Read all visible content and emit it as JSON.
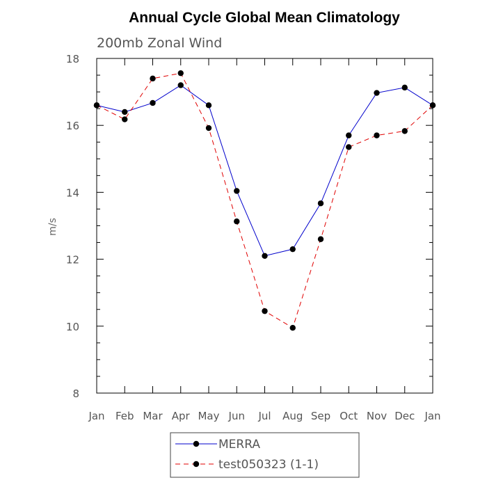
{
  "chart_data": {
    "type": "line",
    "title": "Annual Cycle Global Mean Climatology",
    "subtitle": "200mb Zonal Wind",
    "xlabel": "",
    "ylabel": "m/s",
    "categories": [
      "Jan",
      "Feb",
      "Mar",
      "Apr",
      "May",
      "Jun",
      "Jul",
      "Aug",
      "Sep",
      "Oct",
      "Nov",
      "Dec",
      "Jan"
    ],
    "ylim": [
      8,
      18
    ],
    "yticks": [
      "8",
      "10",
      "12",
      "14",
      "16",
      "18"
    ],
    "legend_position": "bottom-center",
    "series": [
      {
        "name": "MERRA",
        "color": "#0000cc",
        "line_style": "solid",
        "marker": "filled-circle",
        "values": [
          16.6,
          16.4,
          16.67,
          17.2,
          16.6,
          14.04,
          12.1,
          12.3,
          13.67,
          15.7,
          16.97,
          17.13,
          16.6
        ]
      },
      {
        "name": "test050323 (1-1)",
        "color": "#e00000",
        "line_style": "dashed",
        "marker": "filled-circle",
        "values": [
          16.6,
          16.18,
          17.4,
          17.56,
          15.92,
          13.13,
          10.45,
          9.95,
          12.6,
          15.35,
          15.7,
          15.83,
          16.6
        ]
      }
    ]
  }
}
